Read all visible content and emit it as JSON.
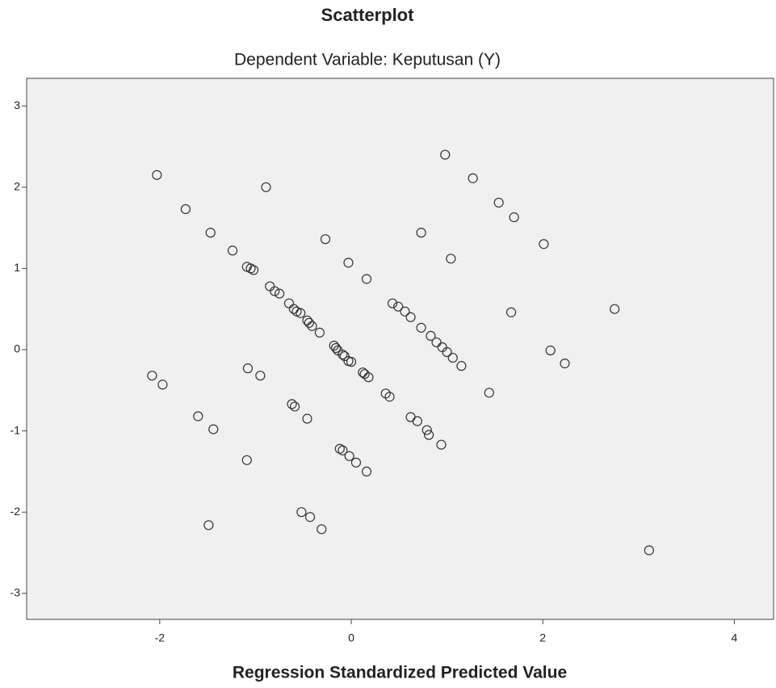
{
  "chart_data": {
    "type": "scatter",
    "title": "Scatterplot",
    "subtitle": "Dependent Variable: Keputusan (Y)",
    "xlabel": "Regression Standardized Predicted Value",
    "xlim": [
      -3.39,
      4.41
    ],
    "ylim": [
      -3.32,
      3.34
    ],
    "xticks": [
      -2,
      0,
      2,
      4
    ],
    "yticks": [
      -3,
      -2,
      -1,
      0,
      1,
      2,
      3
    ],
    "grid": false,
    "series": [
      {
        "name": null,
        "color": "#333333",
        "x": [
          -2.03,
          -1.73,
          -1.47,
          -1.24,
          -1.09,
          -1.05,
          -1.02,
          -0.89,
          -0.85,
          -0.8,
          -0.75,
          -0.65,
          -0.6,
          -0.57,
          -0.53,
          -0.46,
          -0.44,
          -0.41,
          -0.33,
          -0.27,
          -0.18,
          -0.16,
          -0.14,
          -0.09,
          -0.07,
          -0.03,
          0,
          -0.03,
          0.12,
          0.14,
          0.18,
          0.16,
          0.43,
          0.49,
          0.56,
          0.62,
          0.73,
          0.73,
          0.83,
          0.89,
          0.95,
          1.0,
          1.06,
          1.15,
          0.98,
          1.04,
          1.27,
          1.54,
          1.7,
          2.01,
          1.67,
          2.08,
          2.23,
          2.75,
          1.44,
          0.36,
          0.4,
          0.62,
          0.69,
          0.79,
          0.81,
          0.94,
          -2.08,
          -1.97,
          -1.08,
          -0.95,
          -1.6,
          -1.44,
          -0.62,
          -0.59,
          -0.46,
          -1.09,
          -0.12,
          -0.09,
          -0.02,
          0.05,
          0.16,
          -0.52,
          -0.43,
          -0.31,
          -1.49,
          3.11
        ],
        "values": [
          2.15,
          1.73,
          1.44,
          1.22,
          1.02,
          1.0,
          0.98,
          2.0,
          0.78,
          0.72,
          0.69,
          0.57,
          0.5,
          0.47,
          0.45,
          0.36,
          0.33,
          0.29,
          0.21,
          1.36,
          0.05,
          0.02,
          -0.01,
          -0.06,
          -0.08,
          -0.14,
          -0.15,
          1.07,
          -0.28,
          -0.3,
          -0.34,
          0.87,
          0.57,
          0.53,
          0.47,
          0.4,
          1.44,
          0.27,
          0.17,
          0.09,
          0.03,
          -0.03,
          -0.1,
          -0.2,
          2.4,
          1.12,
          2.11,
          1.81,
          1.63,
          1.3,
          0.46,
          -0.01,
          -0.17,
          0.5,
          -0.53,
          -0.54,
          -0.58,
          -0.83,
          -0.88,
          -0.99,
          -1.05,
          -1.17,
          -0.32,
          -0.43,
          -0.23,
          -0.32,
          -0.82,
          -0.98,
          -0.67,
          -0.7,
          -0.85,
          -1.36,
          -1.22,
          -1.24,
          -1.31,
          -1.39,
          -1.5,
          -2.0,
          -2.06,
          -2.21,
          -2.16,
          -2.47
        ]
      }
    ]
  }
}
